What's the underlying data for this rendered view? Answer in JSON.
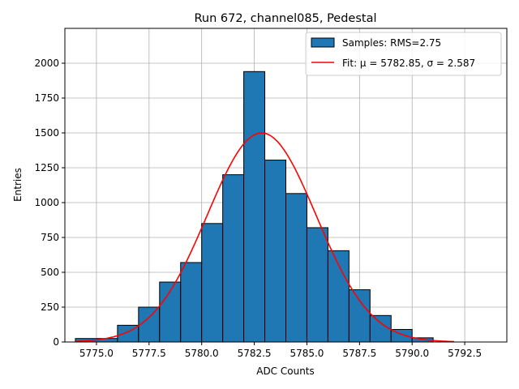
{
  "chart_data": {
    "type": "bar",
    "title": "Run 672, channel085, Pedestal",
    "xlabel": "ADC Counts",
    "ylabel": "Entries",
    "xlim": [
      5773.5,
      5794.5
    ],
    "ylim": [
      0,
      2250
    ],
    "xticks": [
      5775.0,
      5777.5,
      5780.0,
      5782.5,
      5785.0,
      5787.5,
      5790.0,
      5792.5
    ],
    "xtick_labels": [
      "5775.0",
      "5777.5",
      "5780.0",
      "5782.5",
      "5785.0",
      "5787.5",
      "5790.0",
      "5792.5"
    ],
    "yticks": [
      0,
      250,
      500,
      750,
      1000,
      1250,
      1500,
      1750,
      2000
    ],
    "ytick_labels": [
      "0",
      "250",
      "500",
      "750",
      "1000",
      "1250",
      "1500",
      "1750",
      "2000"
    ],
    "grid": true,
    "legend_position": "top-right",
    "bar_color": "#1f77b4",
    "fit_color": "#ff0000",
    "bins": [
      {
        "left": 5774.0,
        "right": 5776.0,
        "count": 25
      },
      {
        "left": 5776.0,
        "right": 5777.0,
        "count": 120
      },
      {
        "left": 5777.0,
        "right": 5778.0,
        "count": 250
      },
      {
        "left": 5778.0,
        "right": 5779.0,
        "count": 430
      },
      {
        "left": 5779.0,
        "right": 5780.0,
        "count": 570
      },
      {
        "left": 5780.0,
        "right": 5781.0,
        "count": 850
      },
      {
        "left": 5781.0,
        "right": 5782.0,
        "count": 1200
      },
      {
        "left": 5782.0,
        "right": 5783.0,
        "count": 1940
      },
      {
        "left": 5783.0,
        "right": 5784.0,
        "count": 1305
      },
      {
        "left": 5784.0,
        "right": 5785.0,
        "count": 1065
      },
      {
        "left": 5785.0,
        "right": 5786.0,
        "count": 820
      },
      {
        "left": 5786.0,
        "right": 5787.0,
        "count": 655
      },
      {
        "left": 5787.0,
        "right": 5788.0,
        "count": 375
      },
      {
        "left": 5788.0,
        "right": 5789.0,
        "count": 190
      },
      {
        "left": 5789.0,
        "right": 5790.0,
        "count": 90
      },
      {
        "left": 5790.0,
        "right": 5791.0,
        "count": 30
      }
    ],
    "fit": {
      "type": "gaussian",
      "mu": 5782.85,
      "sigma": 2.587,
      "amplitude": 1500,
      "x_range": [
        5774.0,
        5792.0
      ]
    },
    "legend": [
      {
        "kind": "bar",
        "label": "Samples: RMS=2.75"
      },
      {
        "kind": "line",
        "label": "Fit: μ = 5782.85, σ = 2.587"
      }
    ]
  }
}
